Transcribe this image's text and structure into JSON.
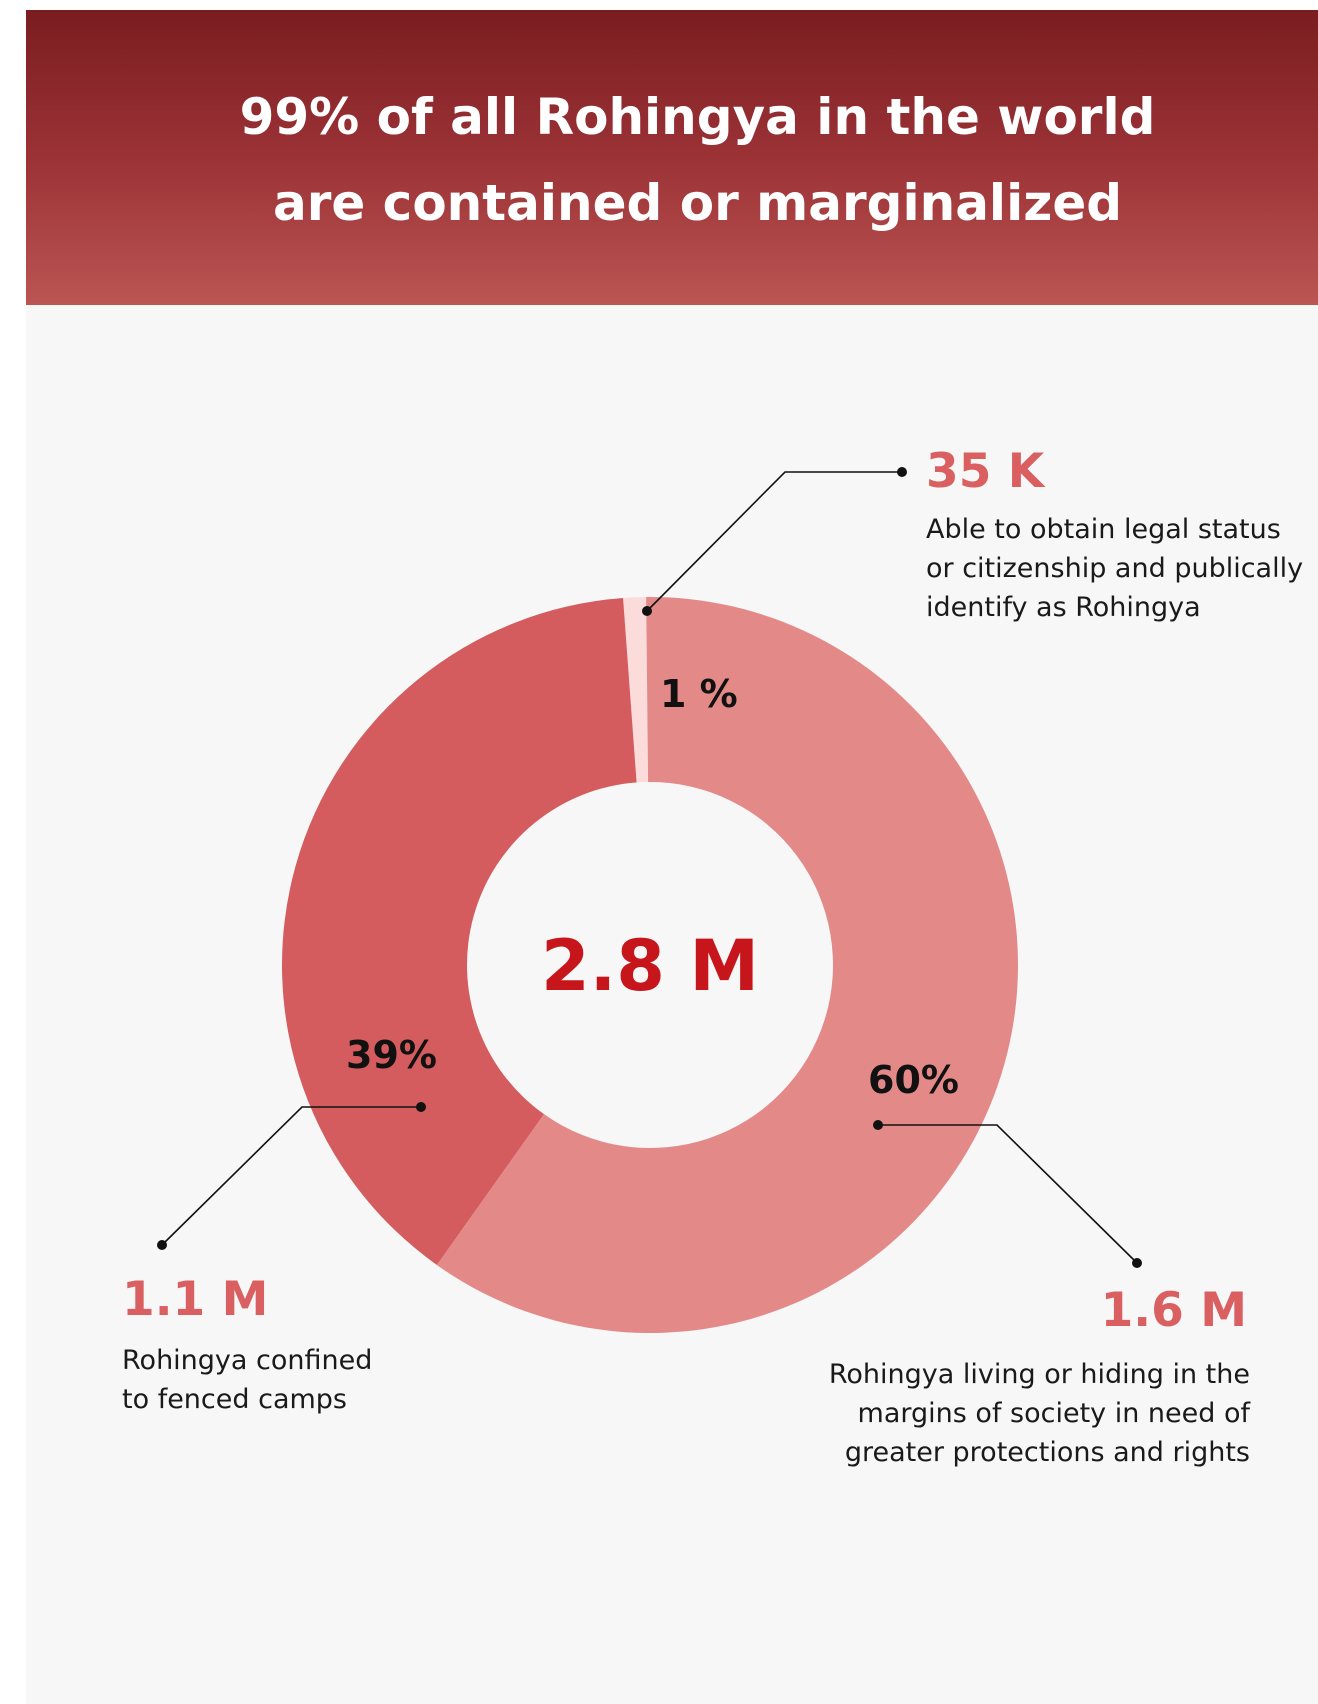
{
  "header": {
    "title_line_1": "99% of all Rohingya in the world",
    "title_line_2": "are contained or marginalized"
  },
  "colors": {
    "banner_top": "#7a1d20",
    "banner_bottom": "#bb5553",
    "panel_background": "#f7f7f7",
    "callout_value": "#d95f61",
    "center_total": "#c7161b"
  },
  "chart_data": {
    "type": "pie",
    "donut": true,
    "center_label": "2.8 M",
    "slices": [
      {
        "key": "legal-status",
        "percent": 1,
        "percent_label": "1 %",
        "value_label": "35 K",
        "description": [
          "Able to obtain legal status",
          "or citizenship and publically",
          "identify as Rohingya"
        ],
        "color": "#fbdcdb"
      },
      {
        "key": "margins",
        "percent": 60,
        "percent_label": "60%",
        "value_label": "1.6 M",
        "description": [
          "Rohingya living or hiding in the",
          "margins of society in need of",
          "greater protections and rights"
        ],
        "color": "#e38a89"
      },
      {
        "key": "camps",
        "percent": 39,
        "percent_label": "39%",
        "value_label": "1.1 M",
        "description": [
          "Rohingya confined",
          "to fenced camps"
        ],
        "color": "#d45c5e"
      }
    ]
  }
}
